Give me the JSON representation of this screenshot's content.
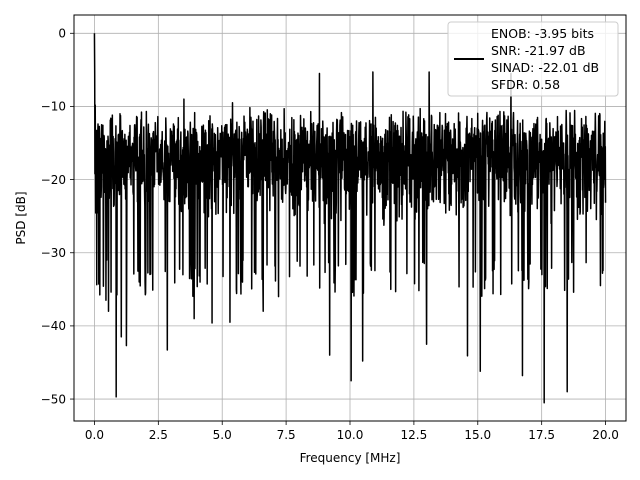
{
  "chart_data": {
    "type": "line",
    "xlabel": "Frequency [MHz]",
    "ylabel": "PSD [dB]",
    "xlim": [
      -0.8,
      20.8
    ],
    "ylim": [
      -53,
      2.5
    ],
    "xticks": [
      0.0,
      2.5,
      5.0,
      7.5,
      10.0,
      12.5,
      15.0,
      17.5,
      20.0
    ],
    "xtick_labels": [
      "0.0",
      "2.5",
      "5.0",
      "7.5",
      "10.0",
      "12.5",
      "15.0",
      "17.5",
      "20.0"
    ],
    "yticks": [
      0,
      -10,
      -20,
      -30,
      -40,
      -50
    ],
    "ytick_labels": [
      "0",
      "−10",
      "−20",
      "−30",
      "−40",
      "−50"
    ],
    "grid": true,
    "legend_position": "top-right",
    "legend": [
      "ENOB: -3.95 bits",
      "SNR: -21.97 dB",
      "SINAD: -22.01 dB",
      "SFDR: 0.58"
    ],
    "series": [
      {
        "color": "#000000",
        "x_range": [
          0,
          20
        ],
        "points": 2000,
        "peak": {
          "x": 0.0,
          "y": 0.0
        },
        "typical_band": [
          -29,
          -10
        ],
        "upper_extremes": [
          {
            "x": 1.0,
            "y": -11
          },
          {
            "x": 3.5,
            "y": -9
          },
          {
            "x": 5.4,
            "y": -9.5
          },
          {
            "x": 8.8,
            "y": -5.5
          },
          {
            "x": 10.9,
            "y": -5.3
          },
          {
            "x": 13.1,
            "y": -5.3
          },
          {
            "x": 16.3,
            "y": -5.5
          },
          {
            "x": 18.5,
            "y": -7.5
          }
        ],
        "deep_nulls": [
          {
            "x": 0.45,
            "y": -36.5
          },
          {
            "x": 0.55,
            "y": -38
          },
          {
            "x": 0.85,
            "y": -49.7
          },
          {
            "x": 1.05,
            "y": -41.5
          },
          {
            "x": 1.25,
            "y": -42.7
          },
          {
            "x": 2.0,
            "y": -35.5
          },
          {
            "x": 2.85,
            "y": -43.3
          },
          {
            "x": 3.9,
            "y": -39
          },
          {
            "x": 4.6,
            "y": -39.6
          },
          {
            "x": 5.3,
            "y": -39.5
          },
          {
            "x": 6.6,
            "y": -38
          },
          {
            "x": 7.2,
            "y": -36
          },
          {
            "x": 9.2,
            "y": -44
          },
          {
            "x": 10.05,
            "y": -47.5
          },
          {
            "x": 10.5,
            "y": -44.8
          },
          {
            "x": 11.6,
            "y": -35
          },
          {
            "x": 13.0,
            "y": -42.5
          },
          {
            "x": 14.6,
            "y": -44.1
          },
          {
            "x": 15.1,
            "y": -46.2
          },
          {
            "x": 16.75,
            "y": -46.8
          },
          {
            "x": 17.6,
            "y": -50.5
          },
          {
            "x": 18.5,
            "y": -49
          },
          {
            "x": 19.8,
            "y": -34.5
          }
        ],
        "noise_seed": 20240601
      }
    ]
  }
}
